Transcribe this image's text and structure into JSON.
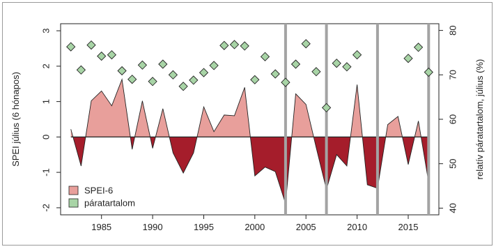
{
  "chart_data": {
    "type": "area",
    "ylabel": "SPEI július (6 hónapos)",
    "y2label": "relatív páratartalom, július (%)",
    "xlim": [
      1981,
      2018
    ],
    "ylim": [
      -2.2,
      3.2
    ],
    "y2lim": [
      38.5,
      81.5
    ],
    "xticks": [
      1985,
      1990,
      1995,
      2000,
      2005,
      2010,
      2015
    ],
    "yticks": [
      -2,
      -1,
      0,
      1,
      2,
      3
    ],
    "y2ticks": [
      40,
      50,
      60,
      70,
      80
    ],
    "highlight_years": [
      2003,
      2007,
      2012,
      2017
    ],
    "colors": {
      "positive_fill": "#e89f9b",
      "negative_fill": "#a51d2b",
      "marker_fill": "#a8d4a6",
      "highlight_line": "#a3a3a3"
    },
    "legend": {
      "position": "bottom-left",
      "labels": [
        "SPEI-6",
        "páratartalom"
      ]
    },
    "series": [
      {
        "name": "SPEI-6",
        "axis": "left",
        "x": [
          1982,
          1983,
          1984,
          1985,
          1986,
          1987,
          1988,
          1989,
          1990,
          1991,
          1992,
          1993,
          1994,
          1995,
          1996,
          1997,
          1998,
          1999,
          2000,
          2001,
          2002,
          2003,
          2004,
          2005,
          2006,
          2007,
          2008,
          2009,
          2010,
          2011,
          2012,
          2013,
          2014,
          2015,
          2016,
          2017
        ],
        "values": [
          0.22,
          -0.82,
          1.02,
          1.3,
          0.88,
          1.63,
          -0.35,
          1.02,
          -0.32,
          0.8,
          -0.45,
          -1.02,
          -0.45,
          0.85,
          0.15,
          0.62,
          0.6,
          1.4,
          -1.1,
          -0.85,
          -0.98,
          -1.88,
          1.22,
          0.92,
          -0.3,
          -1.48,
          -0.5,
          -0.82,
          1.48,
          -1.35,
          -1.45,
          0.35,
          0.58,
          -0.78,
          0.45,
          -1.28
        ]
      },
      {
        "name": "páratartalom",
        "axis": "right",
        "x": [
          1982,
          1983,
          1984,
          1985,
          1986,
          1987,
          1988,
          1989,
          1990,
          1991,
          1992,
          1993,
          1994,
          1995,
          1996,
          1997,
          1998,
          1999,
          2000,
          2001,
          2002,
          2003,
          2004,
          2005,
          2006,
          2007,
          2008,
          2009,
          2010,
          2011,
          2015,
          2016,
          2017
        ],
        "values": [
          76.3,
          71.1,
          76.7,
          74.2,
          74.5,
          70.9,
          69.0,
          72.2,
          68.5,
          72.4,
          70.0,
          67.4,
          68.8,
          70.5,
          72.1,
          76.6,
          76.8,
          76.5,
          68.9,
          74.1,
          70.2,
          68.3,
          72.4,
          77.0,
          70.7,
          62.6,
          72.6,
          71.8,
          74.5,
          null,
          73.7,
          76.2,
          70.6
        ]
      }
    ]
  }
}
